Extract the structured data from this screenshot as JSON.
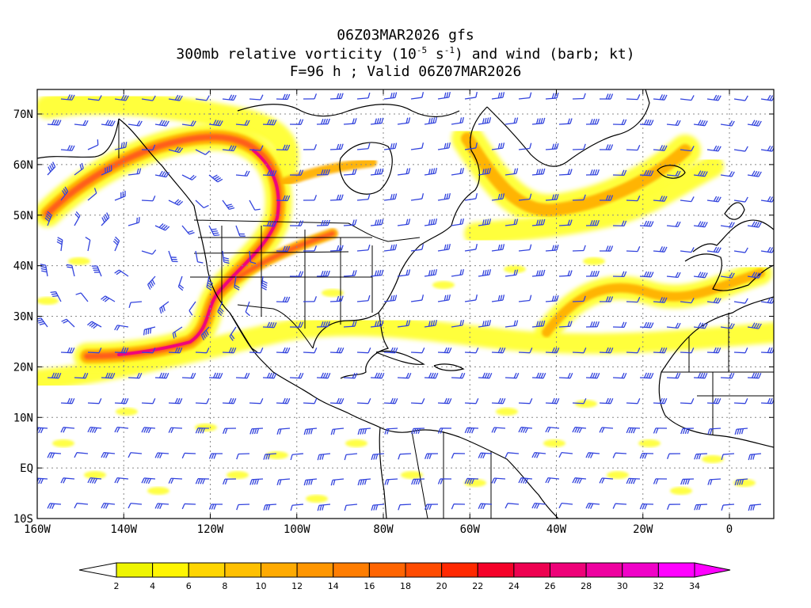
{
  "header": {
    "line1": "06Z03MAR2026 gfs",
    "line2": "300mb relative vorticity (10",
    "line2_exp1": "-5",
    "line2_mid": " s",
    "line2_exp2": "-1",
    "line2_end": ") and wind (barb; kt)",
    "line3": "F=96 h ; Valid 06Z07MAR2026"
  },
  "axes": {
    "lon_labels": [
      "160W",
      "140W",
      "120W",
      "100W",
      "80W",
      "60W",
      "40W",
      "20W",
      "0"
    ],
    "lat_labels": [
      "70N",
      "60N",
      "50N",
      "40N",
      "30N",
      "20N",
      "10N",
      "EQ",
      "10S"
    ]
  },
  "colorbar": {
    "labels": [
      "2",
      "4",
      "6",
      "8",
      "10",
      "12",
      "14",
      "16",
      "18",
      "20",
      "22",
      "24",
      "26",
      "28",
      "30",
      "32",
      "34"
    ],
    "colors": [
      "#eef500",
      "#fff500",
      "#ffd500",
      "#ffc000",
      "#ffaa00",
      "#ff9600",
      "#ff7d00",
      "#ff6400",
      "#ff4b00",
      "#ff2800",
      "#f50028",
      "#ee0050",
      "#ee0078",
      "#ee00a0",
      "#f000c8",
      "#ff00ff"
    ]
  },
  "colors": {
    "barb": "#3344dd",
    "shade_light": "#ffff33",
    "shade_mid": "#ffb000",
    "shade_strong": "#ff5a1e",
    "shade_peak": "#ee0080"
  }
}
